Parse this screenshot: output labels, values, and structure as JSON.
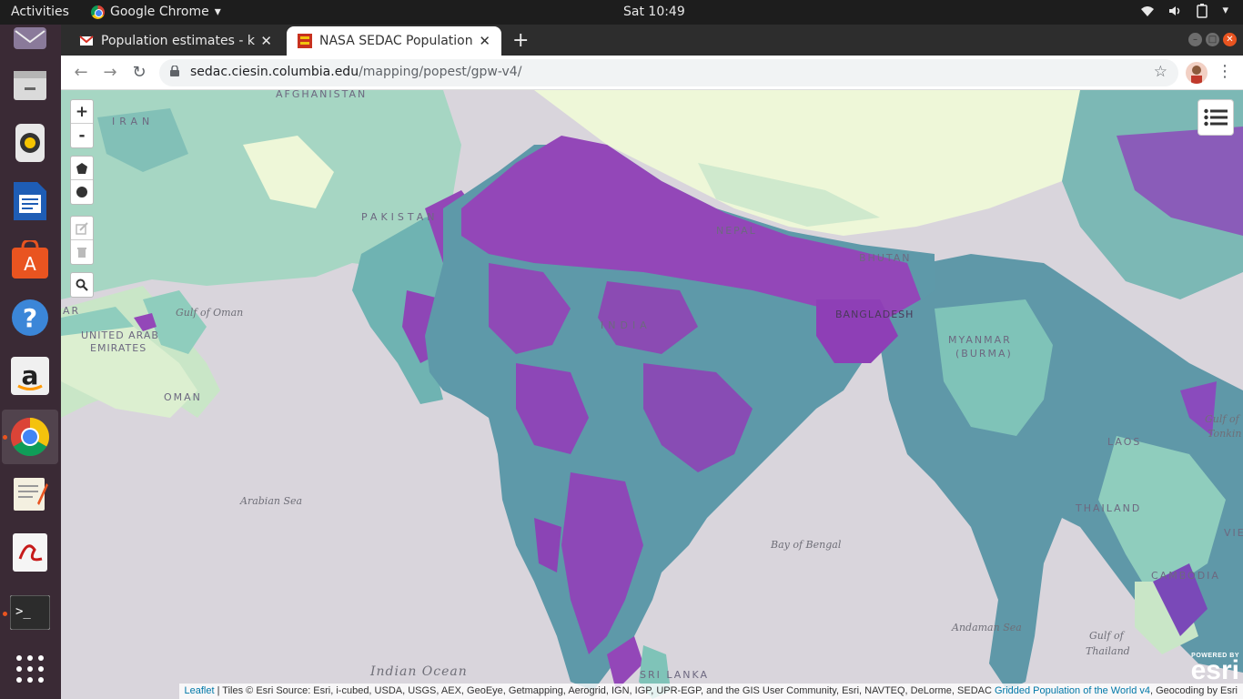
{
  "topbar": {
    "activities": "Activities",
    "app_name": "Google Chrome",
    "clock": "Sat 10:49"
  },
  "dock": {
    "items": [
      "mail",
      "files",
      "rhythmbox",
      "writer",
      "software",
      "help",
      "amazon",
      "chrome",
      "gedit",
      "document-viewer",
      "terminal",
      "apps-grid"
    ]
  },
  "browser": {
    "tabs": [
      {
        "title": "Population estimates - ka",
        "active": false
      },
      {
        "title": "NASA SEDAC Population E",
        "active": true
      }
    ],
    "url_host": "sedac.ciesin.columbia.edu",
    "url_path": "/mapping/popest/gpw-v4/"
  },
  "map": {
    "country_labels": [
      {
        "id": "afghanistan",
        "text": "AFGHANISTAN"
      },
      {
        "id": "iran",
        "text": "IRAN"
      },
      {
        "id": "pakistan",
        "text": "PAKISTAN"
      },
      {
        "id": "nepal",
        "text": "NEPAL"
      },
      {
        "id": "bhutan",
        "text": "BHUTAN"
      },
      {
        "id": "bangladesh",
        "text": "BANGLADESH"
      },
      {
        "id": "india",
        "text": "INDIA"
      },
      {
        "id": "myanmar1",
        "text": "MYANMAR"
      },
      {
        "id": "myanmar2",
        "text": "(BURMA)"
      },
      {
        "id": "uae1",
        "text": "UNITED ARAB"
      },
      {
        "id": "uae2",
        "text": "EMIRATES"
      },
      {
        "id": "oman",
        "text": "OMAN"
      },
      {
        "id": "laos",
        "text": "LAOS"
      },
      {
        "id": "thailand",
        "text": "THAILAND"
      },
      {
        "id": "cambodia",
        "text": "CAMBODIA"
      },
      {
        "id": "srilanka",
        "text": "SRI LANKA"
      },
      {
        "id": "qatar",
        "text": "AR"
      },
      {
        "id": "vietnam",
        "text": "VIET"
      }
    ],
    "sea_labels": [
      {
        "id": "gulf-oman",
        "text": "Gulf of Oman"
      },
      {
        "id": "arabian-sea",
        "text": "Arabian Sea"
      },
      {
        "id": "bay-bengal",
        "text": "Bay of Bengal"
      },
      {
        "id": "andaman-sea",
        "text": "Andaman Sea"
      },
      {
        "id": "gulf-thailand1",
        "text": "Gulf of"
      },
      {
        "id": "gulf-thailand2",
        "text": "Thailand"
      },
      {
        "id": "gulf-tonkin1",
        "text": "Gulf of"
      },
      {
        "id": "gulf-tonkin2",
        "text": "Tonkin"
      },
      {
        "id": "indian-ocean",
        "text": "Indian Ocean"
      }
    ],
    "controls": {
      "zoom_in": "+",
      "zoom_out": "-"
    },
    "esri_powered": "POWERED BY",
    "esri_word": "esri",
    "attribution": {
      "leaflet": "Leaflet",
      "tiles_text": " | Tiles © Esri Source: Esri, i-cubed, USDA, USGS, AEX, GeoEye, Getmapping, Aerogrid, IGN, IGP, UPR-EGP, and the GIS User Community, Esri, NAVTEQ, DeLorme, SEDAC ",
      "gpw_link": "Gridded Population of the World v4",
      "geocoding": ", Geocoding by Esri"
    },
    "colors": {
      "sea": "#d9d5dc",
      "low": "#eef7d8",
      "mid_low": "#aad9c4",
      "mid": "#66aab0",
      "mid_high": "#5c8fa6",
      "high": "#9146b8"
    }
  }
}
